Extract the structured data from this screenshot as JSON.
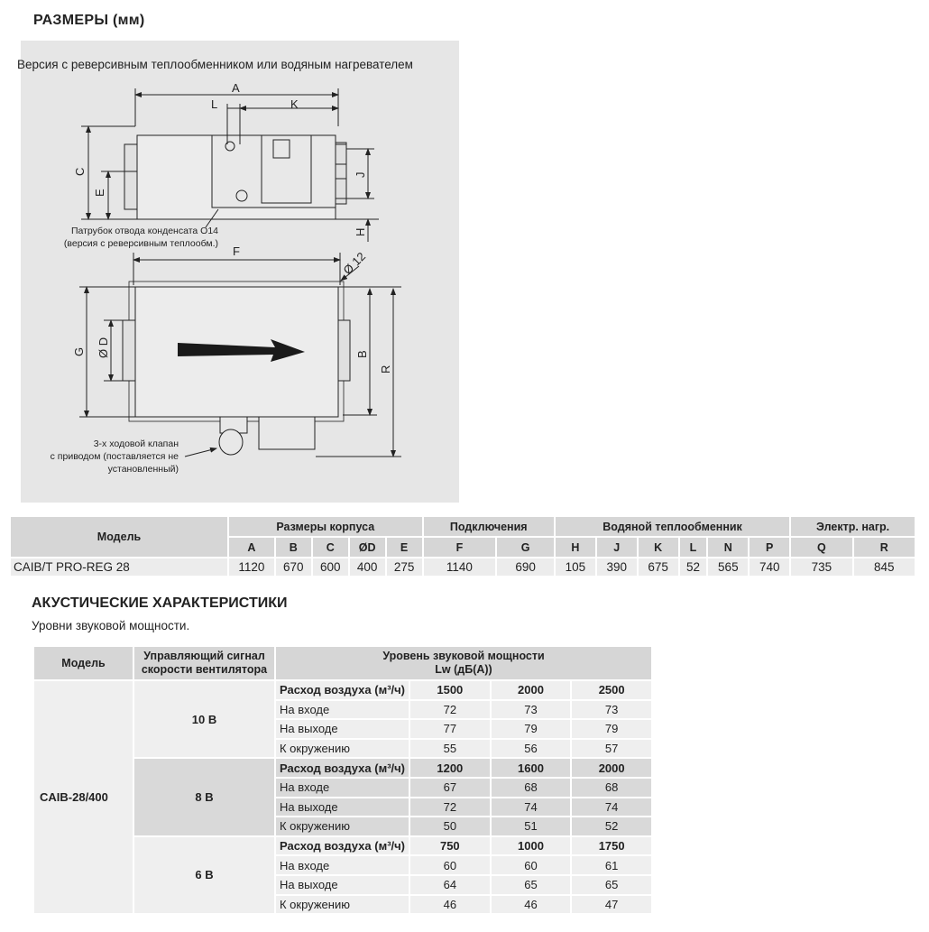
{
  "dimensions": {
    "title": "РАЗМЕРЫ (мм)",
    "caption": "Версия с реверсивным теплообменником или водяным нагревателем",
    "labels": {
      "A": "A",
      "L": "L",
      "K": "K",
      "C": "C",
      "E": "E",
      "J": "J",
      "H": "H",
      "F": "F",
      "d12": "Ø 12",
      "G": "G",
      "D": "Ø D",
      "B": "B",
      "R": "R"
    },
    "note_condensate": [
      "Патрубок отвода конденсата O14",
      "(версия с реверсивным теплообм.)"
    ],
    "note_valve": [
      "3-х ходовой клапан",
      "с приводом (поставляется не",
      "установленный)"
    ],
    "flow-arrow-icon": "arrow-right"
  },
  "dim_table": {
    "model_header": "Модель",
    "groups": [
      "Размеры корпуса",
      "Подключения",
      "Водяной теплообменник",
      "Электр. нагр."
    ],
    "columns": [
      "A",
      "B",
      "C",
      "ØD",
      "E",
      "F",
      "G",
      "H",
      "J",
      "K",
      "L",
      "N",
      "P",
      "Q",
      "R"
    ],
    "row": {
      "model": "CAIB/T PRO-REG 28",
      "values": [
        "1120",
        "670",
        "600",
        "400",
        "275",
        "1140",
        "690",
        "105",
        "390",
        "675",
        "52",
        "565",
        "740",
        "735",
        "845"
      ]
    }
  },
  "acoustics": {
    "title": "АКУСТИЧЕСКИЕ ХАРАКТЕРИСТИКИ",
    "subtitle": "Уровни звуковой мощности.",
    "headers": {
      "model": "Модель",
      "signal": [
        "Управляющий сигнал",
        "скорости вентилятора"
      ],
      "level": [
        "Уровень звуковой мощности",
        "Lw (дБ(A))"
      ]
    },
    "model": "CAIB-28/400",
    "groups": [
      {
        "signal": "10 В",
        "rows": [
          {
            "label": "Расход воздуха (м³/ч)",
            "values": [
              "1500",
              "2000",
              "2500"
            ]
          },
          {
            "label": "На входе",
            "values": [
              "72",
              "73",
              "73"
            ]
          },
          {
            "label": "На выходе",
            "values": [
              "77",
              "79",
              "79"
            ]
          },
          {
            "label": "К окружению",
            "values": [
              "55",
              "56",
              "57"
            ]
          }
        ]
      },
      {
        "signal": "8 В",
        "rows": [
          {
            "label": "Расход воздуха (м³/ч)",
            "values": [
              "1200",
              "1600",
              "2000"
            ]
          },
          {
            "label": "На входе",
            "values": [
              "67",
              "68",
              "68"
            ]
          },
          {
            "label": "На выходе",
            "values": [
              "72",
              "74",
              "74"
            ]
          },
          {
            "label": "К окружению",
            "values": [
              "50",
              "51",
              "52"
            ]
          }
        ]
      },
      {
        "signal": "6 В",
        "rows": [
          {
            "label": "Расход воздуха (м³/ч)",
            "values": [
              "750",
              "1000",
              "1750"
            ]
          },
          {
            "label": "На входе",
            "values": [
              "60",
              "60",
              "61"
            ]
          },
          {
            "label": "На выходе",
            "values": [
              "64",
              "65",
              "65"
            ]
          },
          {
            "label": "К окружению",
            "values": [
              "46",
              "46",
              "47"
            ]
          }
        ]
      }
    ]
  }
}
